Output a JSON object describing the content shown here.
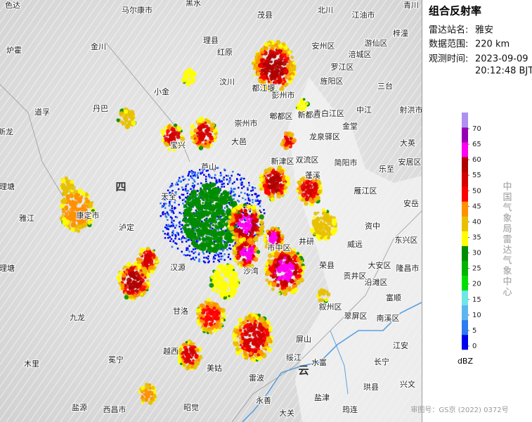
{
  "panel": {
    "title": "组合反射率",
    "rows": [
      {
        "label": "雷达站名:",
        "value": "雅安"
      },
      {
        "label": "数据范围:",
        "value": "220 km"
      },
      {
        "label": "观测时间:",
        "value": "2023-09-09",
        "value2": "20:12:48 BJT"
      }
    ]
  },
  "legend": {
    "unit": "dBZ",
    "ticks": [
      0,
      5,
      10,
      15,
      20,
      25,
      30,
      35,
      40,
      45,
      50,
      55,
      60,
      65,
      70
    ],
    "colors": [
      "#0000f0",
      "#2c7cf0",
      "#5fb6ee",
      "#6ee6e6",
      "#00e000",
      "#00b400",
      "#008c00",
      "#ffff00",
      "#e8c000",
      "#ff9000",
      "#ff0000",
      "#d60000",
      "#b00000",
      "#ff00f0",
      "#9600b4",
      "#ad90f0"
    ]
  },
  "credit": "中国气象局雷达气象中心",
  "approval": "审图号：GS京 (2022) 0372号",
  "map": {
    "labels": [
      "色达",
      "马尔康市",
      "黑水",
      "茂县",
      "北川",
      "江油市",
      "青川",
      "梓潼",
      "安州区",
      "涪城区",
      "游仙区",
      "金川",
      "理县",
      "炉霍",
      "罗江区",
      "汶川",
      "三台",
      "旌阳区",
      "小金",
      "都江堰",
      "彭州市",
      "丹巴",
      "中江",
      "郫都区",
      "新都区",
      "青白江区",
      "射洪市",
      "道孚",
      "新龙",
      "崇州市",
      "金堂",
      "宝兴",
      "大邑",
      "龙泉驿区",
      "简阳市",
      "新津区",
      "双流区",
      "芦山",
      "大英",
      "乐至",
      "安居区",
      "四",
      "理塘",
      "雅江",
      "康定市",
      "天全",
      "雁江区",
      "安岳",
      "泸定",
      "资中",
      "东兴区",
      "威远",
      "井研",
      "市中区",
      "荣县",
      "大安区",
      "隆昌市",
      "汉源",
      "沙湾",
      "贡井区",
      "沿滩区",
      "九龙",
      "甘洛",
      "叙州区",
      "翠屏区",
      "富顺",
      "南溪区",
      "江安",
      "冕宁",
      "越西",
      "木里",
      "美姑",
      "屏山",
      "绥江",
      "云",
      "水富",
      "长宁",
      "珙县",
      "兴文",
      "雷波",
      "永善",
      "大关",
      "盐津",
      "筠连",
      "西昌市",
      "昭觉",
      "盐源",
      "理塘",
      "红原",
      "蓬溪"
    ]
  }
}
